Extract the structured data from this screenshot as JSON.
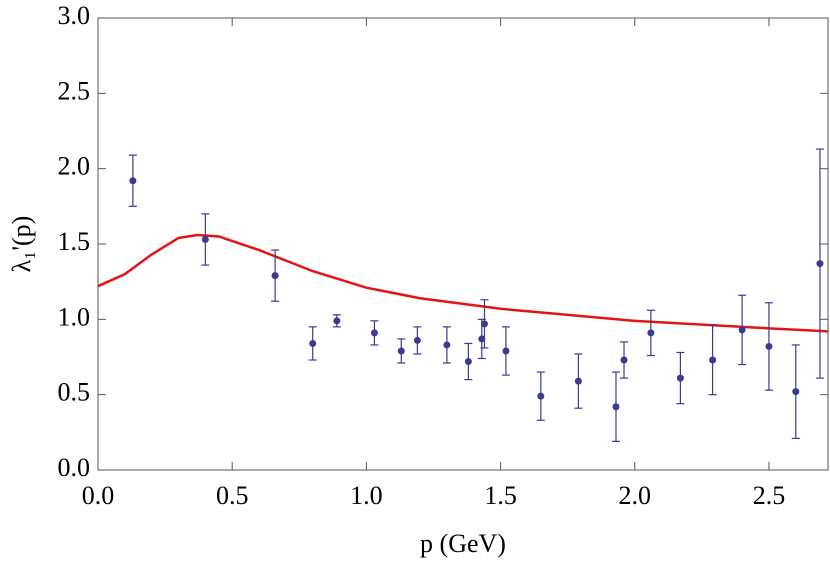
{
  "chart_data": {
    "type": "errorbar-line",
    "x_label": "p (GeV)",
    "y_label": "λ₁'(p)",
    "xlim": [
      0,
      2.72
    ],
    "ylim": [
      0,
      3
    ],
    "xticks": [
      {
        "value": 0,
        "label": "0.0"
      },
      {
        "value": 0.5,
        "label": "0.5"
      },
      {
        "value": 1,
        "label": "1.0"
      },
      {
        "value": 1.5,
        "label": "1.5"
      },
      {
        "value": 2,
        "label": "2.0"
      },
      {
        "value": 2.5,
        "label": "2.5"
      }
    ],
    "yticks": [
      {
        "value": 0,
        "label": "0.0"
      },
      {
        "value": 0.5,
        "label": "0.5"
      },
      {
        "value": 1,
        "label": "1.0"
      },
      {
        "value": 1.5,
        "label": "1.5"
      },
      {
        "value": 2,
        "label": "2.0"
      },
      {
        "value": 2.5,
        "label": "2.5"
      },
      {
        "value": 3,
        "label": "3.0"
      }
    ],
    "points": {
      "color": "#3b3b8f",
      "x": [
        0.13,
        0.4,
        0.66,
        0.8,
        0.89,
        1.03,
        1.13,
        1.19,
        1.3,
        1.38,
        1.43,
        1.44,
        1.52,
        1.65,
        1.79,
        1.93,
        1.96,
        2.06,
        2.17,
        2.29,
        2.4,
        2.5,
        2.6,
        2.69
      ],
      "values": [
        1.92,
        1.53,
        1.29,
        0.84,
        0.99,
        0.91,
        0.79,
        0.86,
        0.83,
        0.72,
        0.87,
        0.97,
        0.79,
        0.49,
        0.59,
        0.42,
        0.73,
        0.91,
        0.61,
        0.73,
        0.93,
        0.82,
        0.52,
        1.37
      ],
      "errors": [
        0.17,
        0.17,
        0.17,
        0.11,
        0.04,
        0.08,
        0.08,
        0.09,
        0.12,
        0.12,
        0.13,
        0.16,
        0.16,
        0.16,
        0.18,
        0.23,
        0.12,
        0.15,
        0.17,
        0.23,
        0.23,
        0.29,
        0.31,
        0.76
      ]
    },
    "curve": {
      "color": "#e41414",
      "x": [
        0,
        0.1,
        0.2,
        0.3,
        0.37,
        0.45,
        0.6,
        0.8,
        1.0,
        1.2,
        1.5,
        2.0,
        2.5,
        2.72
      ],
      "values": [
        1.22,
        1.3,
        1.43,
        1.54,
        1.56,
        1.55,
        1.46,
        1.32,
        1.21,
        1.14,
        1.07,
        0.99,
        0.94,
        0.92
      ]
    }
  }
}
